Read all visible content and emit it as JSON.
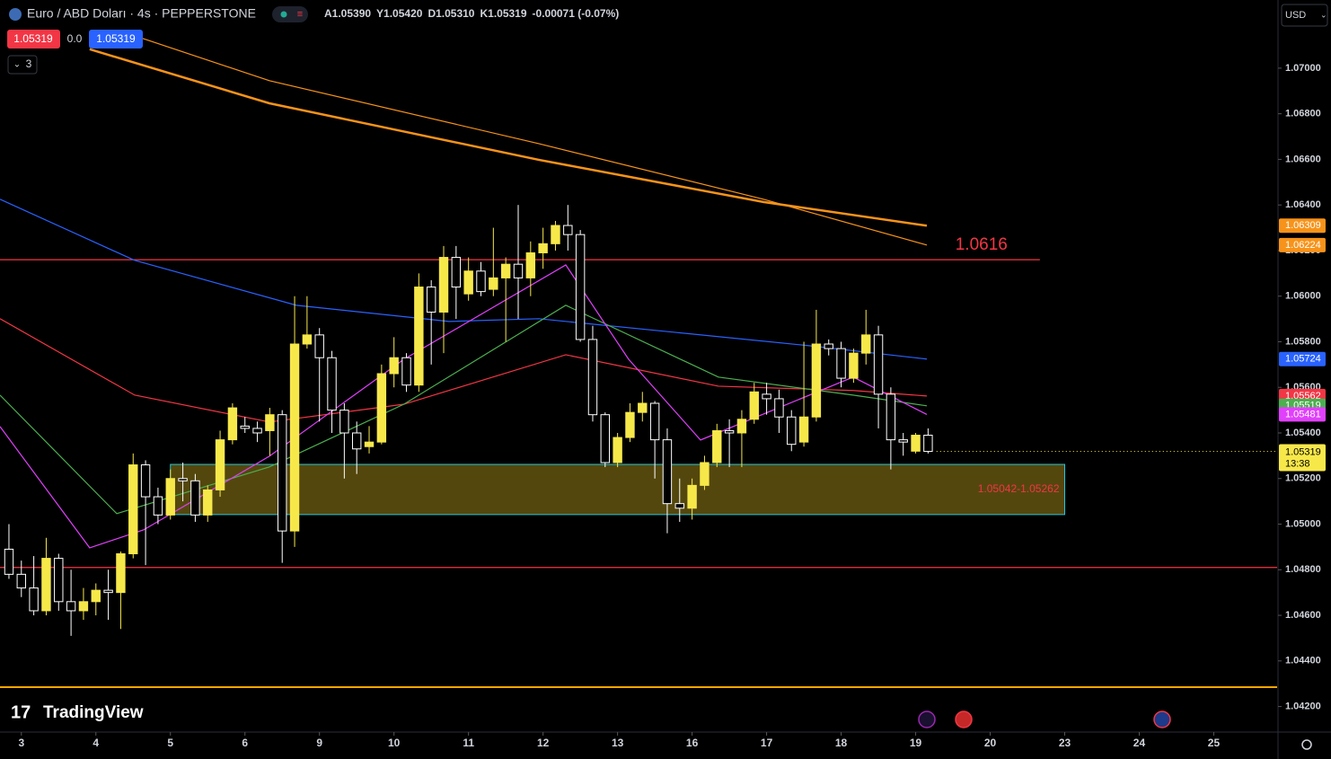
{
  "chart_data": {
    "type": "candlestick",
    "title": "Euro / ABD Doları · 4s · PEPPERSTONE",
    "legend_values": [
      "A1.05390",
      "Y1.05420",
      "D1.05310",
      "K1.05319",
      "-0.00071 (-0.07%)"
    ],
    "bid": 1.05319,
    "spread": "0.0",
    "ask": 1.05319,
    "indicator_count": 3,
    "currency": "USD",
    "brand": "TradingView",
    "price_time": "13:38",
    "up_color": "#f7e84a",
    "down_color": "#000000",
    "down_border": "#ffffff",
    "open": [
      1.0489,
      1.0478,
      1.0472,
      1.0462,
      1.0485,
      1.0466,
      1.0462,
      1.0466,
      1.0471,
      1.047,
      1.0487,
      1.0526,
      1.0512,
      1.0504,
      1.052,
      1.0519,
      1.0504,
      1.0515,
      1.0537,
      1.0543,
      1.0542,
      1.0541,
      1.0548,
      1.0497,
      1.0579,
      1.0583,
      1.0573,
      1.055,
      1.054,
      1.0534,
      1.0536,
      1.0566,
      1.0573,
      1.0561,
      1.0604,
      1.0593,
      1.0617,
      1.0601,
      1.0611,
      1.0603,
      1.0608,
      1.0614,
      1.0608,
      1.0619,
      1.0623,
      1.0631,
      1.0627,
      1.0581,
      1.0548,
      1.0527,
      1.0538,
      1.0549,
      1.0553,
      1.0537,
      1.0509,
      1.0507,
      1.0517,
      1.0527,
      1.0541,
      1.054,
      1.0546,
      1.0557,
      1.0555,
      1.0547,
      1.0536,
      1.0547,
      1.0579,
      1.0577,
      1.0564,
      1.0575,
      1.0583,
      1.0557,
      1.0537,
      1.0532,
      1.0539
    ],
    "high": [
      1.05,
      1.0484,
      1.0486,
      1.0494,
      1.0487,
      1.048,
      1.0472,
      1.0474,
      1.048,
      1.0488,
      1.0531,
      1.0528,
      1.0516,
      1.0524,
      1.0527,
      1.0522,
      1.0517,
      1.0541,
      1.0553,
      1.0547,
      1.0545,
      1.0551,
      1.055,
      1.06,
      1.06,
      1.0586,
      1.0576,
      1.0553,
      1.0545,
      1.0543,
      1.057,
      1.0582,
      1.0575,
      1.061,
      1.0607,
      1.0622,
      1.0622,
      1.0617,
      1.0615,
      1.063,
      1.0617,
      1.064,
      1.0624,
      1.063,
      1.0633,
      1.064,
      1.0629,
      1.0587,
      1.0549,
      1.054,
      1.0553,
      1.0558,
      1.0554,
      1.0542,
      1.052,
      1.052,
      1.053,
      1.0544,
      1.0546,
      1.055,
      1.0562,
      1.0562,
      1.0559,
      1.055,
      1.058,
      1.0594,
      1.0581,
      1.058,
      1.0577,
      1.0594,
      1.0587,
      1.056,
      1.054,
      1.054,
      1.0542
    ],
    "low": [
      1.0476,
      1.0468,
      1.046,
      1.046,
      1.0462,
      1.0451,
      1.0458,
      1.046,
      1.0458,
      1.0454,
      1.0485,
      1.0482,
      1.05,
      1.0502,
      1.051,
      1.0501,
      1.0501,
      1.0512,
      1.0535,
      1.054,
      1.0536,
      1.053,
      1.0483,
      1.049,
      1.0577,
      1.0545,
      1.054,
      1.052,
      1.0522,
      1.0531,
      1.0535,
      1.056,
      1.0558,
      1.0558,
      1.057,
      1.0575,
      1.059,
      1.0598,
      1.06,
      1.06,
      1.058,
      1.059,
      1.06,
      1.0612,
      1.062,
      1.062,
      1.058,
      1.0545,
      1.0525,
      1.0525,
      1.0536,
      1.0545,
      1.052,
      1.0496,
      1.0501,
      1.0502,
      1.0515,
      1.0525,
      1.0525,
      1.0525,
      1.0544,
      1.0548,
      1.054,
      1.0532,
      1.0534,
      1.0545,
      1.0574,
      1.056,
      1.0562,
      1.057,
      1.0542,
      1.0524,
      1.053,
      1.0531,
      1.0531
    ],
    "close": [
      1.0478,
      1.0472,
      1.0462,
      1.0485,
      1.0466,
      1.0462,
      1.0466,
      1.0471,
      1.047,
      1.0487,
      1.0526,
      1.0512,
      1.0504,
      1.052,
      1.0519,
      1.0504,
      1.0515,
      1.0537,
      1.0551,
      1.0542,
      1.054,
      1.0548,
      1.0497,
      1.0579,
      1.0583,
      1.0573,
      1.055,
      1.054,
      1.0533,
      1.0536,
      1.0566,
      1.0573,
      1.0561,
      1.0604,
      1.0593,
      1.0617,
      1.0604,
      1.0611,
      1.0602,
      1.0608,
      1.0614,
      1.0608,
      1.0619,
      1.0623,
      1.0631,
      1.0627,
      1.0581,
      1.0548,
      1.0527,
      1.0538,
      1.0549,
      1.0553,
      1.0537,
      1.0509,
      1.0507,
      1.0517,
      1.0527,
      1.0541,
      1.054,
      1.0546,
      1.0558,
      1.0555,
      1.0547,
      1.0535,
      1.0547,
      1.0579,
      1.0577,
      1.0564,
      1.0575,
      1.0583,
      1.0557,
      1.0537,
      1.0536,
      1.0539,
      1.05319
    ],
    "xlim": [
      -0.72,
      102.1
    ],
    "xticks": [
      {
        "value": 1,
        "label": "3"
      },
      {
        "value": 7,
        "label": "4"
      },
      {
        "value": 13,
        "label": "5"
      },
      {
        "value": 19,
        "label": "6"
      },
      {
        "value": 25,
        "label": "9"
      },
      {
        "value": 31,
        "label": "10"
      },
      {
        "value": 37,
        "label": "11"
      },
      {
        "value": 43,
        "label": "12"
      },
      {
        "value": 49,
        "label": "13"
      },
      {
        "value": 55,
        "label": "16"
      },
      {
        "value": 61,
        "label": "17"
      },
      {
        "value": 67,
        "label": "18"
      },
      {
        "value": 73,
        "label": "19"
      },
      {
        "value": 79,
        "label": "20"
      },
      {
        "value": 85,
        "label": "23"
      },
      {
        "value": 91,
        "label": "24"
      },
      {
        "value": 97,
        "label": "25"
      }
    ],
    "ylim": [
      1.04088,
      1.07299
    ],
    "yticks": [
      {
        "value": 1.07,
        "label": "1.07000"
      },
      {
        "value": 1.068,
        "label": "1.06800"
      },
      {
        "value": 1.066,
        "label": "1.06600"
      },
      {
        "value": 1.064,
        "label": "1.06400"
      },
      {
        "value": 1.062,
        "label": "1.06200"
      },
      {
        "value": 1.06,
        "label": "1.06000"
      },
      {
        "value": 1.058,
        "label": "1.05800"
      },
      {
        "value": 1.056,
        "label": "1.05600"
      },
      {
        "value": 1.054,
        "label": "1.05400"
      },
      {
        "value": 1.052,
        "label": "1.05200"
      },
      {
        "value": 1.05,
        "label": "1.05000"
      },
      {
        "value": 1.048,
        "label": "1.04800"
      },
      {
        "value": 1.046,
        "label": "1.04600"
      },
      {
        "value": 1.044,
        "label": "1.04400"
      },
      {
        "value": 1.042,
        "label": "1.04200"
      }
    ],
    "indicators": [
      {
        "color": "#f7931a",
        "width": 2.5,
        "x": [
          6.5,
          20.97,
          42.66,
          60.74,
          73.9
        ],
        "values": [
          1.07083,
          1.06846,
          1.06598,
          1.06413,
          1.06309
        ]
      },
      {
        "color": "#f7931a",
        "width": 1.2,
        "x": [
          10.12,
          20.97,
          42.66,
          60.74,
          73.9
        ],
        "values": [
          1.07142,
          1.06945,
          1.06669,
          1.06425,
          1.06224
        ]
      },
      {
        "color": "#2962ff",
        "width": 1.2,
        "x": [
          -0.72,
          10.12,
          23.14,
          35.43,
          42.66,
          53.5,
          64.35,
          73.9
        ],
        "values": [
          1.06425,
          1.06157,
          1.0596,
          1.05889,
          1.05901,
          1.05842,
          1.05783,
          1.05724
        ]
      },
      {
        "color": "#f23645",
        "width": 1.2,
        "x": [
          -0.72,
          10.12,
          20.97,
          31.8,
          44.83,
          57.12,
          67.97,
          73.9
        ],
        "values": [
          1.05901,
          1.05566,
          1.05448,
          1.05526,
          1.05743,
          1.05605,
          1.05586,
          1.05562
        ]
      },
      {
        "color": "#4caf50",
        "width": 1.2,
        "x": [
          -0.72,
          8.68,
          20.97,
          31.8,
          44.83,
          57.12,
          67.97,
          73.9
        ],
        "values": [
          1.05566,
          1.05046,
          1.05251,
          1.05526,
          1.0596,
          1.05645,
          1.05566,
          1.05519
        ]
      },
      {
        "color": "#e040fb",
        "width": 1.2,
        "x": [
          -0.72,
          6.5,
          10.85,
          20.97,
          31.8,
          44.83,
          49.89,
          55.68,
          67.97,
          73.9
        ],
        "values": [
          1.05428,
          1.04896,
          1.04975,
          1.05298,
          1.05723,
          1.06137,
          1.05723,
          1.05369,
          1.05645,
          1.05481
        ]
      }
    ],
    "levels": [
      {
        "value": 1.0616,
        "color": "#f23645",
        "x": [
          -0.72,
          83
        ]
      },
      {
        "value": 1.0481,
        "color": "#f23645",
        "x": [
          -0.72,
          102.1
        ]
      },
      {
        "value": 1.04285,
        "color": "#f7a600",
        "x": [
          -0.72,
          102.1
        ]
      }
    ],
    "zone": {
      "low": 1.05042,
      "high": 1.05262,
      "x": [
        13,
        85
      ],
      "label": "1.05042-1.05262",
      "color": "#f23645"
    }
  }
}
